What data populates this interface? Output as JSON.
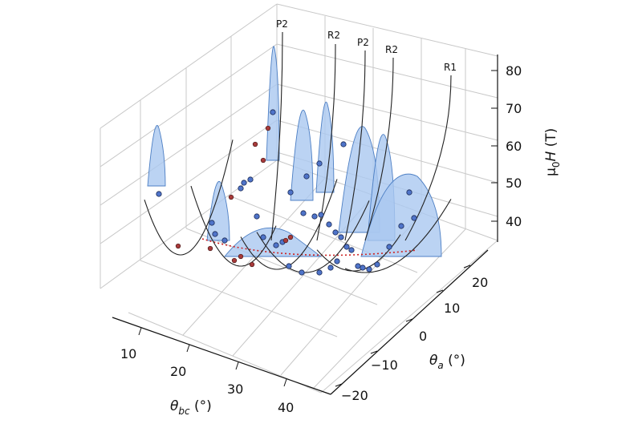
{
  "chart_data": {
    "type": "3d-scatter-line",
    "axes": {
      "x": {
        "label_base": "θ",
        "label_sub": "bc",
        "label_unit": " (°)",
        "ticks": [
          "10",
          "20",
          "30",
          "40"
        ]
      },
      "y": {
        "label_base": "θ",
        "label_sub": "a",
        "label_unit": " (°)",
        "ticks": [
          "−20",
          "−10",
          "0",
          "10",
          "20"
        ]
      },
      "z": {
        "label_base": "μ",
        "label_sub": "0",
        "label_ital": "H",
        "label_unit": " (T)",
        "ticks": [
          "40",
          "50",
          "60",
          "70",
          "80"
        ]
      }
    },
    "grid": true,
    "curve_labels": [
      "P2",
      "R2",
      "P2",
      "R2",
      "R1"
    ],
    "minimum_trend": {
      "style": "dotted",
      "color": "#cc2222"
    },
    "colors": {
      "curve": "#222222",
      "surface_fill": "#aac8f0",
      "surface_edge": "#4d7fc4",
      "point_blue": "#4f74c9",
      "point_red": "#a83a3a",
      "point_edge": "#1b2a55"
    }
  }
}
